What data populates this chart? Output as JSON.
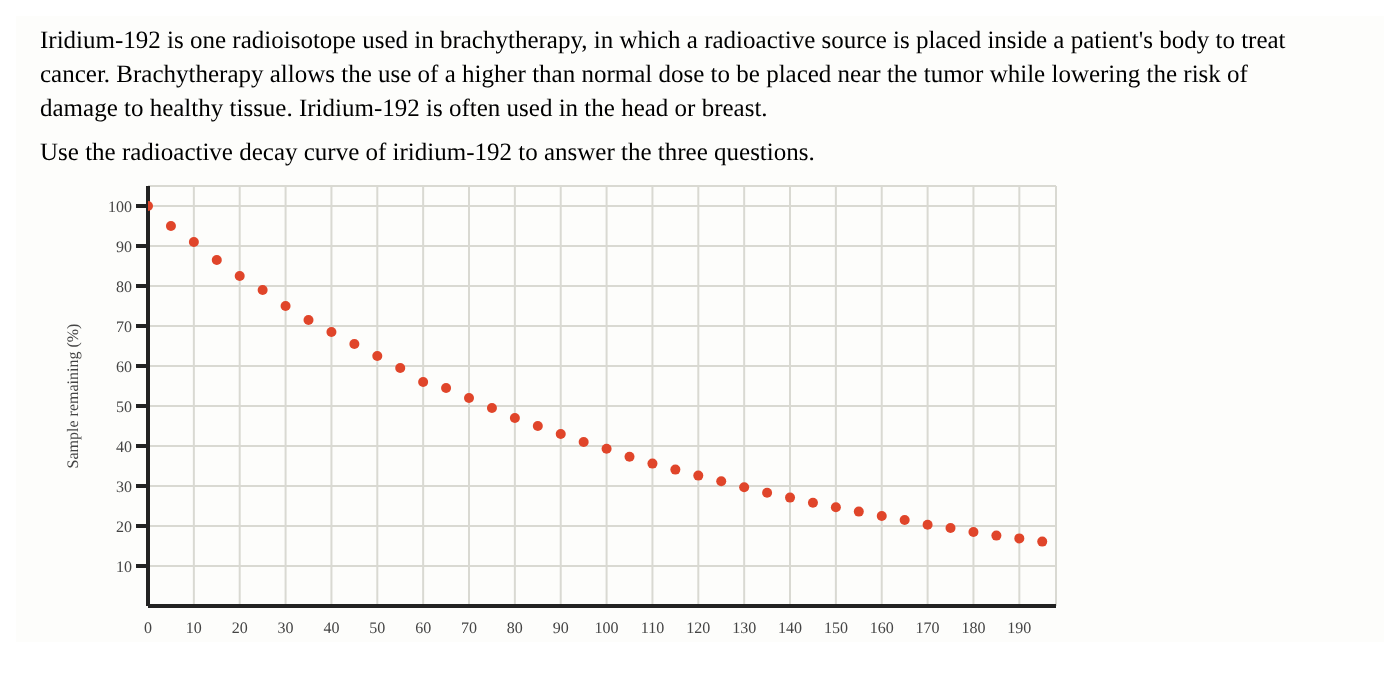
{
  "chart_data": {
    "type": "scatter",
    "title": "Iridium-192 is one radioisotope used in brachytherapy, in which a radioactive source is placed inside a patient's body to treat cancer. Brachytherapy allows the use of a higher than normal dose to be placed near the tumor while lowering the risk of damage to healthy tissue. Iridium-192 is often used in the head or breast.",
    "subtitle": "Use the radioactive decay curve of iridium-192 to answer the three questions.",
    "ylabel": "Sample remaining (%)",
    "x": [
      0,
      5,
      10,
      15,
      20,
      25,
      30,
      35,
      40,
      45,
      50,
      55,
      60,
      65,
      70,
      75,
      80,
      85,
      90,
      95,
      100,
      105,
      110,
      115,
      120,
      125,
      130,
      135,
      140,
      145,
      150,
      155,
      160,
      165,
      170,
      175,
      180,
      185,
      190,
      195
    ],
    "series": [
      {
        "color": "#e0452a",
        "values": [
          100,
          95,
          91,
          86.5,
          82.5,
          79,
          75,
          71.5,
          68.5,
          65.5,
          62.5,
          59.5,
          56,
          54.5,
          52,
          49.5,
          47,
          45,
          43,
          41,
          39.3,
          37.3,
          35.6,
          34.1,
          32.6,
          31.2,
          29.7,
          28.3,
          27.1,
          25.8,
          24.7,
          23.6,
          22.5,
          21.5,
          20.3,
          19.5,
          18.5,
          17.6,
          16.9,
          16.1
        ]
      }
    ],
    "xlim": [
      0,
      198
    ],
    "xticks": [
      0,
      10,
      20,
      30,
      40,
      50,
      60,
      70,
      80,
      90,
      100,
      110,
      120,
      130,
      140,
      150,
      160,
      170,
      180,
      190
    ],
    "ylim": [
      0,
      105
    ],
    "yticks": [
      10,
      20,
      30,
      40,
      50,
      60,
      70,
      80,
      90,
      100
    ],
    "grid": true,
    "marker": "circle"
  }
}
